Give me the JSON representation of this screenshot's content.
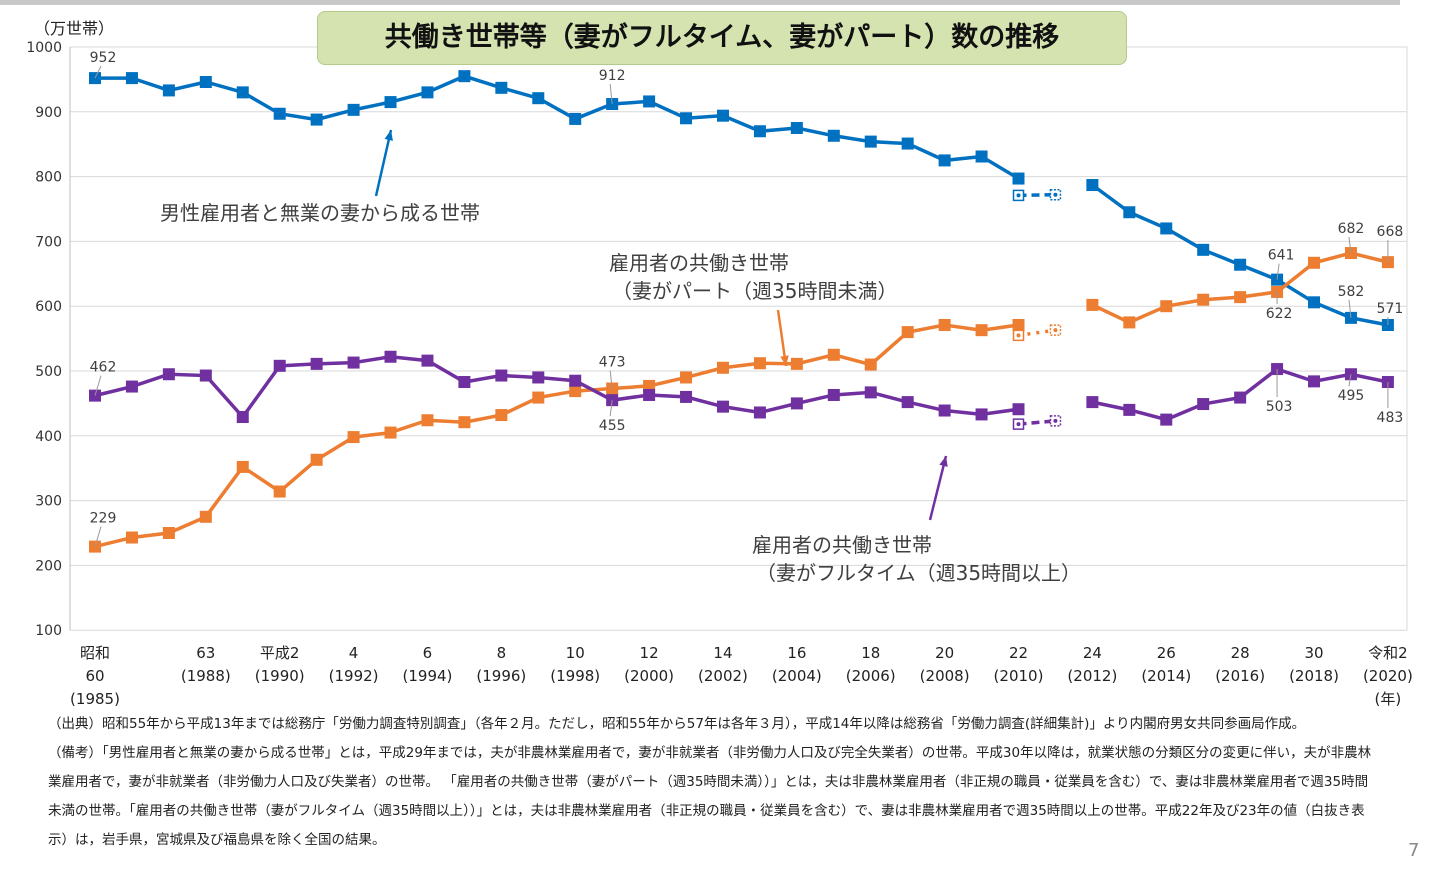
{
  "title": "共働き世帯等（妻がフルタイム、妻がパート）数の推移",
  "page_number": "7",
  "chart_data": {
    "type": "line",
    "title": "共働き世帯等（妻がフルタイム、妻がパート）数の推移",
    "ylabel": "（万世帯）",
    "xlabel": "（年）",
    "ylim": [
      100,
      1000
    ],
    "yticks": [
      100,
      200,
      300,
      400,
      500,
      600,
      700,
      800,
      900,
      1000
    ],
    "grid": true,
    "x": [
      1985,
      1986,
      1987,
      1988,
      1989,
      1990,
      1991,
      1992,
      1993,
      1994,
      1995,
      1996,
      1997,
      1998,
      1999,
      2000,
      2001,
      2002,
      2003,
      2004,
      2005,
      2006,
      2007,
      2008,
      2009,
      2010,
      2011,
      2012,
      2013,
      2014,
      2015,
      2016,
      2017,
      2018,
      2019,
      2020
    ],
    "xtick_labels": [
      {
        "year": 1985,
        "lines": [
          "昭和",
          "60",
          "(1985)"
        ]
      },
      {
        "year": 1988,
        "lines": [
          "63",
          "(1988)"
        ]
      },
      {
        "year": 1990,
        "lines": [
          "平成2",
          "(1990)"
        ]
      },
      {
        "year": 1992,
        "lines": [
          "4",
          "(1992)"
        ]
      },
      {
        "year": 1994,
        "lines": [
          "6",
          "(1994)"
        ]
      },
      {
        "year": 1996,
        "lines": [
          "8",
          "(1996)"
        ]
      },
      {
        "year": 1998,
        "lines": [
          "10",
          "(1998)"
        ]
      },
      {
        "year": 2000,
        "lines": [
          "12",
          "(2000)"
        ]
      },
      {
        "year": 2002,
        "lines": [
          "14",
          "(2002)"
        ]
      },
      {
        "year": 2004,
        "lines": [
          "16",
          "(2004)"
        ]
      },
      {
        "year": 2006,
        "lines": [
          "18",
          "(2006)"
        ]
      },
      {
        "year": 2008,
        "lines": [
          "20",
          "(2008)"
        ]
      },
      {
        "year": 2010,
        "lines": [
          "22",
          "(2010)"
        ]
      },
      {
        "year": 2012,
        "lines": [
          "24",
          "(2012)"
        ]
      },
      {
        "year": 2014,
        "lines": [
          "26",
          "(2014)"
        ]
      },
      {
        "year": 2016,
        "lines": [
          "28",
          "(2016)"
        ]
      },
      {
        "year": 2018,
        "lines": [
          "30",
          "(2018)"
        ]
      },
      {
        "year": 2020,
        "lines": [
          "令和2",
          "(2020)",
          "(年)"
        ]
      }
    ],
    "series": [
      {
        "name": "男性雇用者と無業の妻から成る世帯",
        "color": "#0070c0",
        "values": [
          952,
          952,
          933,
          946,
          930,
          897,
          888,
          903,
          915,
          930,
          955,
          937,
          921,
          889,
          912,
          916,
          890,
          894,
          870,
          875,
          863,
          854,
          851,
          825,
          831,
          797,
          null,
          787,
          745,
          720,
          687,
          664,
          641,
          606,
          582,
          571
        ],
        "excluding_three_prefectures": {
          "years": [
            2010,
            2011
          ],
          "values": [
            771,
            772
          ]
        },
        "data_labels": [
          {
            "year": 1985,
            "text": "952"
          },
          {
            "year": 1999,
            "text": "912"
          },
          {
            "year": 2017,
            "text": "641"
          },
          {
            "year": 2019,
            "text": "582"
          },
          {
            "year": 2020,
            "text": "571"
          }
        ]
      },
      {
        "name": "雇用者の共働き世帯（妻がパート（週35時間未満）",
        "color": "#ed7d31",
        "values": [
          229,
          243,
          250,
          275,
          352,
          314,
          363,
          398,
          405,
          424,
          421,
          432,
          459,
          469,
          473,
          477,
          490,
          505,
          512,
          511,
          525,
          510,
          560,
          571,
          563,
          571,
          null,
          602,
          575,
          600,
          610,
          614,
          622,
          667,
          682,
          668
        ],
        "excluding_three_prefectures": {
          "years": [
            2010,
            2011
          ],
          "values": [
            555,
            563
          ]
        },
        "data_labels": [
          {
            "year": 1985,
            "text": "229"
          },
          {
            "year": 1999,
            "text": "473"
          },
          {
            "year": 2017,
            "text": "622"
          },
          {
            "year": 2019,
            "text": "682"
          },
          {
            "year": 2020,
            "text": "668"
          }
        ]
      },
      {
        "name": "雇用者の共働き世帯（妻がフルタイム（週35時間以上）",
        "color": "#7030a0",
        "values": [
          462,
          476,
          495,
          493,
          429,
          508,
          511,
          513,
          522,
          516,
          483,
          493,
          490,
          485,
          455,
          463,
          460,
          445,
          436,
          450,
          463,
          467,
          452,
          439,
          433,
          441,
          null,
          452,
          440,
          425,
          449,
          459,
          503,
          484,
          495,
          483
        ],
        "excluding_three_prefectures": {
          "years": [
            2010,
            2011
          ],
          "values": [
            418,
            423
          ]
        },
        "data_labels": [
          {
            "year": 1985,
            "text": "462"
          },
          {
            "year": 1999,
            "text": "455"
          },
          {
            "year": 2017,
            "text": "503"
          },
          {
            "year": 2019,
            "text": "495"
          },
          {
            "year": 2020,
            "text": "483"
          }
        ]
      }
    ],
    "annotations": [
      {
        "series": 0,
        "lines": [
          "男性雇用者と無業の妻から成る世帯"
        ]
      },
      {
        "series": 1,
        "lines": [
          "雇用者の共働き世帯",
          "（妻がパート（週35時間未満）"
        ]
      },
      {
        "series": 2,
        "lines": [
          "雇用者の共働き世帯",
          "（妻がフルタイム（週35時間以上）"
        ]
      }
    ]
  },
  "notes": [
    "（出典）昭和55年から平成13年までは総務庁「労働力調査特別調査」（各年２月。ただし，昭和55年から57年は各年３月），平成14年以降は総務省「労働力調査(詳細集計)」より内閣府男女共同参画局作成。",
    "（備考）「男性雇用者と無業の妻から成る世帯」とは，平成29年までは，夫が非農林業雇用者で，妻が非就業者（非労働力人口及び完全失業者）の世帯。平成30年以降は，就業状態の分類区分の変更に伴い，夫が非農林業雇用者で，妻が非就業者（非労働力人口及び失業者）の世帯。 「雇用者の共働き世帯（妻がパート（週35時間未満））」とは，夫は非農林業雇用者（非正規の職員・従業員を含む）で、妻は非農林業雇用者で週35時間未満の世帯。「雇用者の共働き世帯（妻がフルタイム（週35時間以上））」とは，夫は非農林業雇用者（非正規の職員・従業員を含む）で、妻は非農林業雇用者で週35時間以上の世帯。平成22年及び23年の値（白抜き表示）は，岩手県，宮城県及び福島県を除く全国の結果。"
  ]
}
